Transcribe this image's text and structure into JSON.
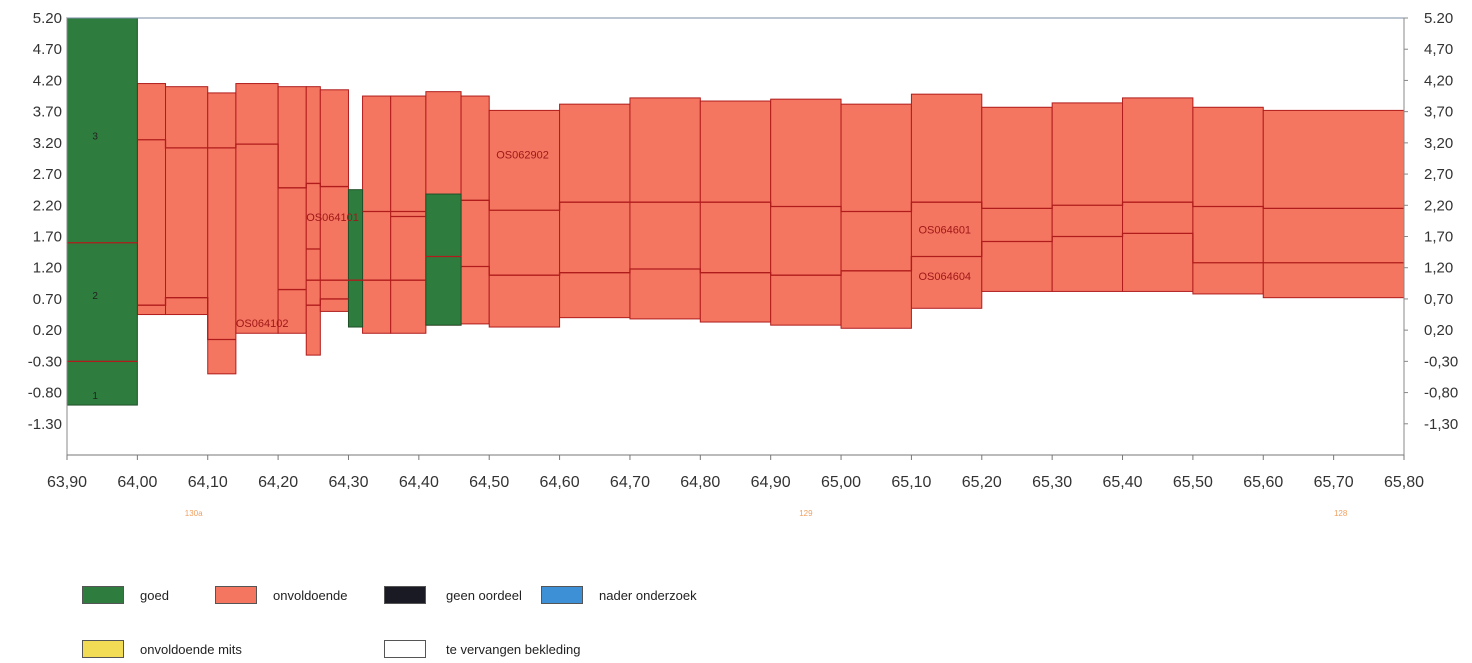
{
  "chart_data": {
    "type": "area",
    "title": "",
    "xlabel": "",
    "ylabel": "",
    "xlim": [
      63.9,
      65.8
    ],
    "ylim": [
      -1.8,
      5.2
    ],
    "x_ticks": [
      "63,90",
      "64,00",
      "64,10",
      "64,20",
      "64,30",
      "64,40",
      "64,50",
      "64,60",
      "64,70",
      "64,80",
      "64,90",
      "65,00",
      "65,10",
      "65,20",
      "65,30",
      "65,40",
      "65,50",
      "65,60",
      "65,70",
      "65,80"
    ],
    "y_ticks": [
      "5.20",
      "4.70",
      "4.20",
      "3.70",
      "3.20",
      "2.70",
      "2.20",
      "1.70",
      "1.20",
      "0.70",
      "0.20",
      "-0.30",
      "-0.80",
      "-1.30"
    ],
    "y_ticks_right": [
      "5.20",
      "4,70",
      "4,20",
      "3,70",
      "3,20",
      "2,70",
      "2,20",
      "1,70",
      "1,20",
      "0,70",
      "0,20",
      "-0,30",
      "-0,80",
      "-1,30"
    ],
    "secondary_labels": [
      {
        "x": 64.08,
        "text": "130a"
      },
      {
        "x": 64.95,
        "text": "129"
      },
      {
        "x": 65.71,
        "text": "128"
      }
    ],
    "colors": {
      "goed": "#2e7d3e",
      "onvoldoende": "#f47560",
      "line": "#b01c1c"
    },
    "series": [
      {
        "name": "goed",
        "segments": [
          {
            "x0": 63.9,
            "x1": 64.0,
            "y0": -1.0,
            "y1": 5.2
          },
          {
            "x0": 64.3,
            "x1": 64.32,
            "y0": 0.25,
            "y1": 2.45
          },
          {
            "x0": 64.41,
            "x1": 64.46,
            "y0": 0.28,
            "y1": 2.38
          }
        ]
      },
      {
        "name": "onvoldoende",
        "segments": [
          {
            "x0": 64.0,
            "x1": 64.04,
            "y0": 0.45,
            "y1": 4.15
          },
          {
            "x0": 64.04,
            "x1": 64.1,
            "y0": 0.45,
            "y1": 4.1
          },
          {
            "x0": 64.1,
            "x1": 64.14,
            "y0": -0.5,
            "y1": 4.0
          },
          {
            "x0": 64.14,
            "x1": 64.2,
            "y0": 0.15,
            "y1": 4.15
          },
          {
            "x0": 64.2,
            "x1": 64.24,
            "y0": 0.15,
            "y1": 4.1
          },
          {
            "x0": 64.24,
            "x1": 64.26,
            "y0": -0.2,
            "y1": 4.1
          },
          {
            "x0": 64.26,
            "x1": 64.3,
            "y0": 0.5,
            "y1": 4.05
          },
          {
            "x0": 64.32,
            "x1": 64.36,
            "y0": 0.15,
            "y1": 3.95
          },
          {
            "x0": 64.36,
            "x1": 64.41,
            "y0": 0.15,
            "y1": 3.95
          },
          {
            "x0": 64.41,
            "x1": 64.46,
            "y0": 0.28,
            "y1": 4.02
          },
          {
            "x0": 64.46,
            "x1": 64.5,
            "y0": 0.3,
            "y1": 3.95
          },
          {
            "x0": 64.5,
            "x1": 64.6,
            "y0": 0.25,
            "y1": 3.72
          },
          {
            "x0": 64.6,
            "x1": 64.7,
            "y0": 0.4,
            "y1": 3.82
          },
          {
            "x0": 64.7,
            "x1": 64.8,
            "y0": 0.38,
            "y1": 3.92
          },
          {
            "x0": 64.8,
            "x1": 64.9,
            "y0": 0.33,
            "y1": 3.87
          },
          {
            "x0": 64.9,
            "x1": 65.0,
            "y0": 0.28,
            "y1": 3.9
          },
          {
            "x0": 65.0,
            "x1": 65.1,
            "y0": 0.23,
            "y1": 3.82
          },
          {
            "x0": 65.1,
            "x1": 65.2,
            "y0": 0.55,
            "y1": 3.98
          },
          {
            "x0": 65.2,
            "x1": 65.3,
            "y0": 0.82,
            "y1": 3.77
          },
          {
            "x0": 65.3,
            "x1": 65.4,
            "y0": 0.82,
            "y1": 3.84
          },
          {
            "x0": 65.4,
            "x1": 65.5,
            "y0": 0.82,
            "y1": 3.92
          },
          {
            "x0": 65.5,
            "x1": 65.6,
            "y0": 0.78,
            "y1": 3.77
          },
          {
            "x0": 65.6,
            "x1": 65.8,
            "y0": 0.72,
            "y1": 3.72
          }
        ]
      }
    ],
    "layer_lines": [
      {
        "points": [
          [
            63.9,
            1.6
          ],
          [
            64.0,
            1.6
          ]
        ]
      },
      {
        "points": [
          [
            63.9,
            -0.3
          ],
          [
            64.0,
            -0.3
          ]
        ]
      },
      {
        "points": [
          [
            64.0,
            3.25
          ],
          [
            64.04,
            3.25
          ],
          [
            64.04,
            3.12
          ],
          [
            64.14,
            3.12
          ],
          [
            64.14,
            3.18
          ],
          [
            64.2,
            3.18
          ],
          [
            64.2,
            2.48
          ],
          [
            64.24,
            2.48
          ],
          [
            64.24,
            2.55
          ],
          [
            64.26,
            2.55
          ],
          [
            64.26,
            2.5
          ],
          [
            64.3,
            2.5
          ]
        ]
      },
      {
        "points": [
          [
            64.0,
            0.6
          ],
          [
            64.04,
            0.6
          ],
          [
            64.04,
            0.72
          ],
          [
            64.1,
            0.72
          ],
          [
            64.1,
            0.05
          ],
          [
            64.14,
            0.05
          ]
        ]
      },
      {
        "points": [
          [
            64.2,
            0.85
          ],
          [
            64.24,
            0.85
          ]
        ]
      },
      {
        "points": [
          [
            64.24,
            1.5
          ],
          [
            64.26,
            1.5
          ]
        ]
      },
      {
        "points": [
          [
            64.24,
            1.0
          ],
          [
            64.41,
            1.0
          ]
        ]
      },
      {
        "points": [
          [
            64.24,
            0.6
          ],
          [
            64.26,
            0.6
          ],
          [
            64.26,
            0.7
          ],
          [
            64.3,
            0.7
          ]
        ]
      },
      {
        "points": [
          [
            64.32,
            2.1
          ],
          [
            64.41,
            2.1
          ]
        ]
      },
      {
        "points": [
          [
            64.36,
            2.02
          ],
          [
            64.41,
            2.02
          ]
        ]
      },
      {
        "points": [
          [
            64.41,
            1.38
          ],
          [
            64.46,
            1.38
          ]
        ]
      },
      {
        "points": [
          [
            64.46,
            2.28
          ],
          [
            64.5,
            2.28
          ],
          [
            64.5,
            2.12
          ],
          [
            64.6,
            2.12
          ],
          [
            64.6,
            2.25
          ],
          [
            64.9,
            2.25
          ],
          [
            64.9,
            2.18
          ],
          [
            65.0,
            2.18
          ],
          [
            65.0,
            2.1
          ],
          [
            65.1,
            2.1
          ],
          [
            65.1,
            2.25
          ],
          [
            65.2,
            2.25
          ],
          [
            65.2,
            2.15
          ],
          [
            65.3,
            2.15
          ],
          [
            65.3,
            2.2
          ],
          [
            65.4,
            2.2
          ],
          [
            65.4,
            2.25
          ],
          [
            65.5,
            2.25
          ],
          [
            65.5,
            2.18
          ],
          [
            65.6,
            2.18
          ],
          [
            65.6,
            2.15
          ],
          [
            65.8,
            2.15
          ]
        ]
      },
      {
        "points": [
          [
            64.46,
            1.22
          ],
          [
            64.5,
            1.22
          ],
          [
            64.5,
            1.08
          ],
          [
            64.6,
            1.08
          ],
          [
            64.6,
            1.12
          ],
          [
            64.7,
            1.12
          ],
          [
            64.7,
            1.18
          ],
          [
            64.8,
            1.18
          ],
          [
            64.8,
            1.12
          ],
          [
            64.9,
            1.12
          ],
          [
            64.9,
            1.08
          ],
          [
            65.0,
            1.08
          ],
          [
            65.0,
            1.15
          ],
          [
            65.1,
            1.15
          ],
          [
            65.1,
            1.38
          ],
          [
            65.2,
            1.38
          ],
          [
            65.2,
            1.62
          ],
          [
            65.3,
            1.62
          ],
          [
            65.3,
            1.7
          ],
          [
            65.4,
            1.7
          ],
          [
            65.4,
            1.75
          ],
          [
            65.5,
            1.75
          ],
          [
            65.5,
            1.28
          ],
          [
            65.8,
            1.28
          ]
        ]
      }
    ],
    "annotations": [
      {
        "x": 63.94,
        "y": 3.25,
        "text": "3"
      },
      {
        "x": 63.94,
        "y": 0.7,
        "text": "2"
      },
      {
        "x": 63.94,
        "y": -0.9,
        "text": "1"
      },
      {
        "x": 64.51,
        "y": 2.95,
        "text": "OS062902"
      },
      {
        "x": 64.24,
        "y": 1.95,
        "text": "OS064101"
      },
      {
        "x": 64.14,
        "y": 0.25,
        "text": "OS064102"
      },
      {
        "x": 65.11,
        "y": 1.75,
        "text": "OS064601"
      },
      {
        "x": 65.11,
        "y": 1.0,
        "text": "OS064604"
      }
    ]
  },
  "legend": {
    "items": [
      {
        "label": "goed",
        "color": "#2e7d3e"
      },
      {
        "label": "onvoldoende",
        "color": "#f47560"
      },
      {
        "label": "geen oordeel",
        "color": "#1a1a24"
      },
      {
        "label": "nader onderzoek",
        "color": "#3d8fd6"
      },
      {
        "label": "onvoldoende mits",
        "color": "#f3dc55"
      },
      {
        "label": "te vervangen bekleding",
        "color": "#ffffff"
      }
    ]
  }
}
